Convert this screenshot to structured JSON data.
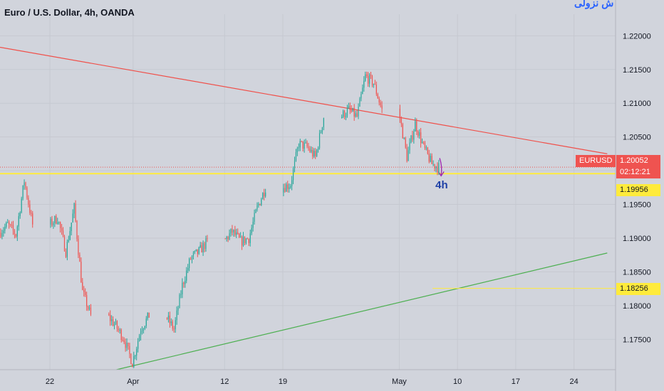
{
  "header": {
    "title": "Euro / U.S. Dollar, 4h, OANDA",
    "watermark": "ش نزولی",
    "currency": "USD"
  },
  "price_scale": {
    "symbol_badge": "EURUSD",
    "last_price": "1.20052",
    "countdown": "02:12:21",
    "level_label_1": "1.19956",
    "level_label_2": "1.18256"
  },
  "annotation": {
    "text": "4h"
  },
  "colors": {
    "background": "#d1d4dc",
    "bull": "#26a69a",
    "bear": "#ef5350",
    "resistance": "#f0504a",
    "support": "#4caf50",
    "level": "#ffeb3b",
    "arrow": "#9c27b0",
    "annotation": "#1e40a6",
    "text": "#131722"
  },
  "chart_data": {
    "type": "candlestick",
    "symbol": "EURUSD",
    "timeframe": "4h",
    "y_ticks": [
      1.22,
      1.215,
      1.21,
      1.205,
      1.2,
      1.195,
      1.19,
      1.185,
      1.18,
      1.175
    ],
    "x_ticks": [
      "22",
      "Apr",
      "12",
      "19",
      "May",
      "10",
      "17",
      "24"
    ],
    "x_tick_dates": [
      "2021-03-22",
      "2021-04-01",
      "2021-04-12",
      "2021-04-19",
      "2021-05-03",
      "2021-05-10",
      "2021-05-17",
      "2021-05-24"
    ],
    "ylim": [
      1.1705,
      1.2232
    ],
    "last_price": 1.20052,
    "horizontal_levels": [
      1.19956,
      1.18256
    ],
    "trendlines": [
      {
        "name": "resistance",
        "points": [
          [
            "2021-03-16",
            1.2183
          ],
          [
            "2021-05-28",
            1.2025
          ]
        ]
      },
      {
        "name": "support",
        "points": [
          [
            "2021-03-30",
            1.1705
          ],
          [
            "2021-05-28",
            1.1878
          ]
        ]
      }
    ],
    "close_path": [
      [
        "2021-03-16",
        1.192
      ],
      [
        "2021-03-17",
        1.1905
      ],
      [
        "2021-03-18",
        1.1985
      ],
      [
        "2021-03-19",
        1.192
      ],
      [
        "2021-03-22",
        1.193
      ],
      [
        "2021-03-23",
        1.188
      ],
      [
        "2021-03-24",
        1.1945
      ],
      [
        "2021-03-25",
        1.182
      ],
      [
        "2021-03-26",
        1.1785
      ],
      [
        "2021-03-29",
        1.177
      ],
      [
        "2021-03-30",
        1.175
      ],
      [
        "2021-03-31",
        1.1715
      ],
      [
        "2021-04-01",
        1.1765
      ],
      [
        "2021-04-02",
        1.1785
      ],
      [
        "2021-04-05",
        1.1765
      ],
      [
        "2021-04-06",
        1.183
      ],
      [
        "2021-04-07",
        1.187
      ],
      [
        "2021-04-08",
        1.188
      ],
      [
        "2021-04-09",
        1.1895
      ],
      [
        "2021-04-12",
        1.191
      ],
      [
        "2021-04-13",
        1.1895
      ],
      [
        "2021-04-14",
        1.19
      ],
      [
        "2021-04-15",
        1.1945
      ],
      [
        "2021-04-16",
        1.1975
      ],
      [
        "2021-04-19",
        1.198
      ],
      [
        "2021-04-20",
        1.204
      ],
      [
        "2021-04-21",
        1.2035
      ],
      [
        "2021-04-22",
        1.202
      ],
      [
        "2021-04-23",
        1.208
      ],
      [
        "2021-04-26",
        1.209
      ],
      [
        "2021-04-27",
        1.208
      ],
      [
        "2021-04-28",
        1.214
      ],
      [
        "2021-04-29",
        1.213
      ],
      [
        "2021-04-30",
        1.209
      ],
      [
        "2021-05-03",
        1.202
      ],
      [
        "2021-05-04",
        1.207
      ],
      [
        "2021-05-05",
        1.2035
      ],
      [
        "2021-05-06",
        1.201
      ],
      [
        "2021-05-07",
        1.20052
      ]
    ]
  }
}
